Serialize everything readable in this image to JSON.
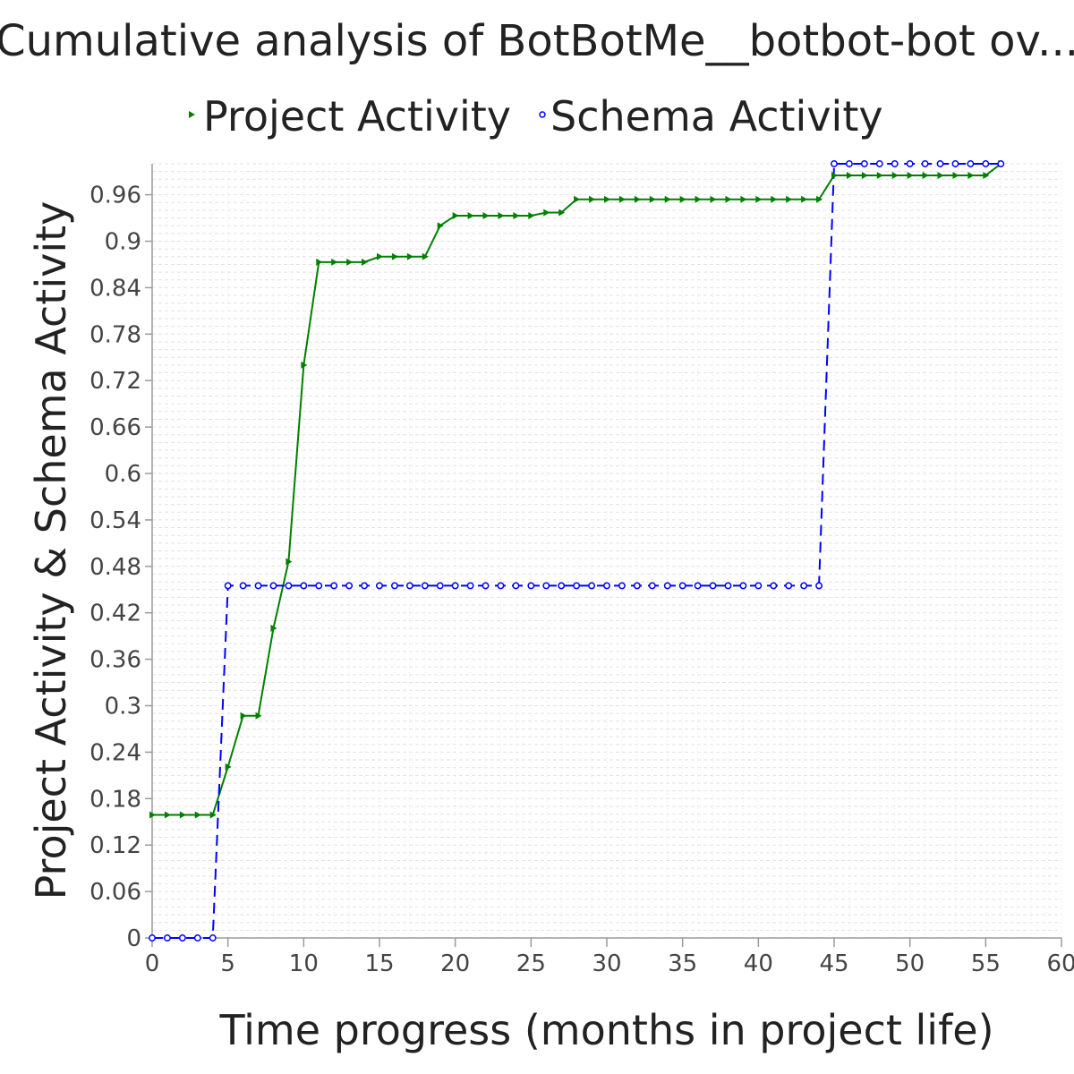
{
  "chart_data": {
    "type": "line",
    "title": "Cumulative analysis of BotBotMe__botbot-bot ov...",
    "xlabel": "Time progress (months in project life)",
    "ylabel": "Project Activity & Schema Activity",
    "xlim": [
      0,
      60
    ],
    "ylim": [
      0,
      1.0
    ],
    "x_ticks": [
      "0",
      "5",
      "10",
      "15",
      "20",
      "25",
      "30",
      "35",
      "40",
      "45",
      "50",
      "55",
      "60"
    ],
    "y_ticks": [
      "0",
      "0.06",
      "0.12",
      "0.18",
      "0.24",
      "0.3",
      "0.36",
      "0.42",
      "0.48",
      "0.54",
      "0.6",
      "0.66",
      "0.72",
      "0.78",
      "0.84",
      "0.9",
      "0.96"
    ],
    "grid": true,
    "legend_position": "top-center",
    "series": [
      {
        "name": "Project Activity",
        "color": "#008000",
        "marker": "triangle-right",
        "line_style": "solid",
        "x": [
          0,
          1,
          2,
          3,
          4,
          5,
          6,
          7,
          8,
          9,
          10,
          11,
          12,
          13,
          14,
          15,
          16,
          17,
          18,
          19,
          20,
          21,
          22,
          23,
          24,
          25,
          26,
          27,
          28,
          29,
          30,
          31,
          32,
          33,
          34,
          35,
          36,
          37,
          38,
          39,
          40,
          41,
          42,
          43,
          44,
          45,
          46,
          47,
          48,
          49,
          50,
          51,
          52,
          53,
          54,
          55,
          56
        ],
        "y": [
          0.159,
          0.159,
          0.159,
          0.159,
          0.159,
          0.221,
          0.287,
          0.287,
          0.4,
          0.486,
          0.74,
          0.873,
          0.873,
          0.873,
          0.873,
          0.88,
          0.88,
          0.88,
          0.88,
          0.92,
          0.933,
          0.933,
          0.933,
          0.933,
          0.933,
          0.933,
          0.937,
          0.937,
          0.954,
          0.954,
          0.954,
          0.954,
          0.954,
          0.954,
          0.954,
          0.954,
          0.954,
          0.954,
          0.954,
          0.954,
          0.954,
          0.954,
          0.954,
          0.954,
          0.954,
          0.985,
          0.985,
          0.985,
          0.985,
          0.985,
          0.985,
          0.985,
          0.985,
          0.985,
          0.985,
          0.985,
          1.0
        ]
      },
      {
        "name": "Schema Activity",
        "color": "#0000ff",
        "marker": "circle",
        "line_style": "dashed",
        "x": [
          0,
          1,
          2,
          3,
          4,
          5,
          6,
          7,
          8,
          9,
          10,
          11,
          12,
          13,
          14,
          15,
          16,
          17,
          18,
          19,
          20,
          21,
          22,
          23,
          24,
          25,
          26,
          27,
          28,
          29,
          30,
          31,
          32,
          33,
          34,
          35,
          36,
          37,
          38,
          39,
          40,
          41,
          42,
          43,
          44,
          45,
          46,
          47,
          48,
          49,
          50,
          51,
          52,
          53,
          54,
          55,
          56
        ],
        "y": [
          0,
          0,
          0,
          0,
          0,
          0.455,
          0.455,
          0.455,
          0.455,
          0.455,
          0.455,
          0.455,
          0.455,
          0.455,
          0.455,
          0.455,
          0.455,
          0.455,
          0.455,
          0.455,
          0.455,
          0.455,
          0.455,
          0.455,
          0.455,
          0.455,
          0.455,
          0.455,
          0.455,
          0.455,
          0.455,
          0.455,
          0.455,
          0.455,
          0.455,
          0.455,
          0.455,
          0.455,
          0.455,
          0.455,
          0.455,
          0.455,
          0.455,
          0.455,
          0.455,
          1.0,
          1.0,
          1.0,
          1.0,
          1.0,
          1.0,
          1.0,
          1.0,
          1.0,
          1.0,
          1.0,
          1.0
        ]
      }
    ]
  }
}
